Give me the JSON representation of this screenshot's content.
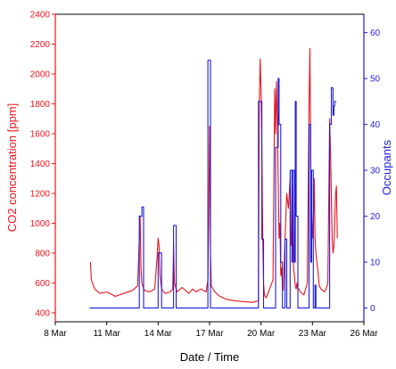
{
  "chart_data": {
    "type": "line",
    "title": "",
    "xlabel": "Date / Time",
    "ylabel_left": "CO2 concentration [ppm]",
    "ylabel_right": "Occupants",
    "x_unit": "day of March",
    "xlim": [
      8,
      26
    ],
    "x_ticks": [
      {
        "value": 8,
        "label": "8 Mar"
      },
      {
        "value": 11,
        "label": "11 Mar"
      },
      {
        "value": 14,
        "label": "14 Mar"
      },
      {
        "value": 17,
        "label": "17 Mar"
      },
      {
        "value": 20,
        "label": "20 Mar"
      },
      {
        "value": 23,
        "label": "23 Mar"
      },
      {
        "value": 26,
        "label": "26 Mar"
      }
    ],
    "ylim_left": [
      340,
      2400
    ],
    "y_ticks_left": [
      400,
      600,
      800,
      1000,
      1200,
      1400,
      1600,
      1800,
      2000,
      2200,
      2400
    ],
    "ylim_right": [
      -3,
      64
    ],
    "y_ticks_right": [
      0,
      10,
      20,
      30,
      40,
      50,
      60
    ],
    "grid": false,
    "colors": {
      "co2": "#e8141b",
      "occupants": "#1d1ddc",
      "axis_left": "#e8141b",
      "axis_right": "#1d1ddc",
      "frame": "#000000"
    },
    "series": [
      {
        "axis": "left",
        "x": [
          10.05,
          10.1,
          10.3,
          10.6,
          11.0,
          11.5,
          12.0,
          12.5,
          12.8,
          12.9,
          12.95,
          13.0,
          13.05,
          13.1,
          13.2,
          13.5,
          13.8,
          13.95,
          14.0,
          14.05,
          14.1,
          14.2,
          14.4,
          14.7,
          14.85,
          14.9,
          14.95,
          15.1,
          15.4,
          15.8,
          16.0,
          16.2,
          16.5,
          16.8,
          16.9,
          16.95,
          17.0,
          17.05,
          17.1,
          17.3,
          17.6,
          18.0,
          18.5,
          19.0,
          19.5,
          19.85,
          19.9,
          19.95,
          20.0,
          20.05,
          20.1,
          20.15,
          20.2,
          20.3,
          20.5,
          20.7,
          20.8,
          20.85,
          20.9,
          20.95,
          21.0,
          21.05,
          21.1,
          21.15,
          21.2,
          21.25,
          21.3,
          21.4,
          21.5,
          21.6,
          21.7,
          21.75,
          21.8,
          21.85,
          21.9,
          21.95,
          22.0,
          22.05,
          22.1,
          22.15,
          22.2,
          22.3,
          22.5,
          22.7,
          22.8,
          22.85,
          22.9,
          22.95,
          23.0,
          23.05,
          23.1,
          23.15,
          23.2,
          23.3,
          23.4,
          23.5,
          23.6,
          23.7,
          23.8,
          23.9,
          24.0,
          24.05,
          24.1,
          24.15,
          24.2,
          24.25,
          24.3,
          24.35,
          24.4,
          24.45
        ],
        "y": [
          740,
          620,
          560,
          530,
          540,
          510,
          530,
          550,
          580,
          900,
          1050,
          700,
          600,
          580,
          550,
          540,
          560,
          800,
          900,
          850,
          650,
          560,
          530,
          540,
          560,
          850,
          600,
          540,
          570,
          530,
          560,
          540,
          560,
          540,
          620,
          1000,
          1650,
          800,
          580,
          540,
          510,
          490,
          480,
          475,
          470,
          480,
          1800,
          2100,
          1900,
          1500,
          900,
          600,
          520,
          500,
          560,
          620,
          1900,
          1600,
          1950,
          1700,
          1300,
          900,
          1000,
          650,
          700,
          580,
          550,
          900,
          1200,
          1100,
          1300,
          850,
          950,
          1250,
          700,
          650,
          580,
          560,
          600,
          560,
          560,
          540,
          520,
          600,
          1800,
          2170,
          1400,
          1100,
          900,
          1000,
          1300,
          900,
          800,
          700,
          580,
          560,
          550,
          540,
          560,
          600,
          1700,
          1500,
          1200,
          900,
          800,
          850,
          1000,
          1200,
          1250,
          900
        ]
      },
      {
        "axis": "right",
        "x": [
          10.0,
          12.9,
          12.9,
          13.05,
          13.05,
          13.15,
          13.15,
          14.0,
          14.0,
          14.2,
          14.2,
          14.9,
          14.9,
          15.05,
          15.05,
          16.9,
          16.9,
          17.05,
          17.05,
          19.85,
          19.85,
          20.05,
          20.05,
          20.15,
          20.15,
          20.85,
          20.85,
          21.0,
          21.0,
          21.05,
          21.05,
          21.15,
          21.15,
          21.25,
          21.25,
          21.4,
          21.4,
          21.5,
          21.5,
          21.7,
          21.7,
          21.8,
          21.8,
          21.85,
          21.85,
          21.95,
          21.95,
          22.0,
          22.0,
          22.05,
          22.05,
          22.15,
          22.15,
          22.8,
          22.8,
          22.9,
          22.9,
          22.95,
          22.95,
          23.05,
          23.05,
          23.15,
          23.15,
          23.2,
          23.2,
          24.0,
          24.0,
          24.1,
          24.1,
          24.2,
          24.2,
          24.25,
          24.25,
          24.3,
          24.3,
          24.4
        ],
        "y": [
          0,
          0,
          20,
          20,
          22,
          22,
          0,
          0,
          12,
          12,
          0,
          0,
          18,
          18,
          0,
          0,
          54,
          54,
          0,
          0,
          45,
          45,
          15,
          15,
          0,
          0,
          35,
          35,
          50,
          50,
          40,
          40,
          10,
          10,
          0,
          0,
          15,
          15,
          0,
          0,
          30,
          30,
          10,
          10,
          30,
          30,
          10,
          10,
          45,
          45,
          20,
          20,
          0,
          0,
          40,
          40,
          10,
          10,
          30,
          30,
          0,
          0,
          5,
          5,
          0,
          0,
          40,
          40,
          48,
          48,
          42,
          42,
          44,
          44,
          45,
          45
        ]
      }
    ]
  }
}
